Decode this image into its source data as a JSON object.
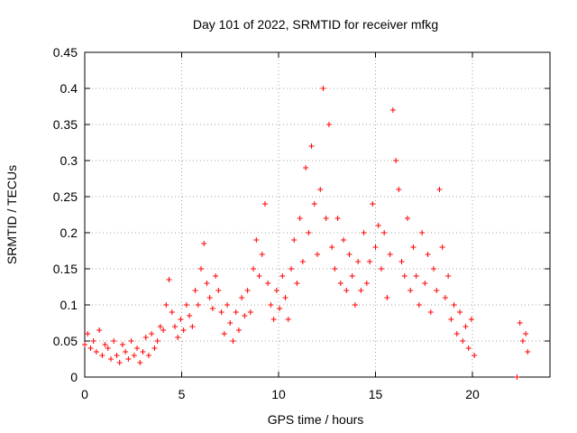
{
  "chart_data": {
    "type": "scatter",
    "title": "Day 101 of 2022, SRMTID for receiver mfkg",
    "xlabel": "GPS time / hours",
    "ylabel": "SRMTID / TECUs",
    "xlim": [
      0,
      24
    ],
    "ylim": [
      0,
      0.45
    ],
    "xticks": [
      "0",
      "5",
      "10",
      "15",
      "20"
    ],
    "yticks": [
      "0",
      "0.05",
      "0.1",
      "0.15",
      "0.2",
      "0.25",
      "0.3",
      "0.35",
      "0.4",
      "0.45"
    ],
    "grid": true,
    "marker": "+",
    "color": "#ff0000",
    "series": [
      {
        "name": "mfkg",
        "x": [
          0.0,
          0.15,
          0.3,
          0.45,
          0.6,
          0.75,
          0.9,
          1.05,
          1.2,
          1.35,
          1.5,
          1.65,
          1.8,
          1.95,
          2.1,
          2.25,
          2.4,
          2.55,
          2.7,
          2.85,
          3.0,
          3.15,
          3.3,
          3.45,
          3.6,
          3.75,
          3.9,
          4.05,
          4.2,
          4.35,
          4.5,
          4.65,
          4.8,
          4.95,
          5.1,
          5.25,
          5.4,
          5.55,
          5.7,
          5.85,
          6.0,
          6.15,
          6.3,
          6.45,
          6.6,
          6.75,
          6.9,
          7.05,
          7.2,
          7.35,
          7.5,
          7.65,
          7.8,
          7.95,
          8.1,
          8.25,
          8.4,
          8.55,
          8.7,
          8.85,
          9.0,
          9.15,
          9.3,
          9.45,
          9.6,
          9.75,
          9.9,
          10.05,
          10.2,
          10.35,
          10.5,
          10.65,
          10.8,
          10.95,
          11.1,
          11.25,
          11.4,
          11.55,
          11.7,
          11.85,
          12.0,
          12.15,
          12.3,
          12.45,
          12.6,
          12.75,
          12.9,
          13.05,
          13.2,
          13.35,
          13.5,
          13.65,
          13.8,
          13.95,
          14.1,
          14.25,
          14.4,
          14.55,
          14.7,
          14.85,
          15.0,
          15.15,
          15.3,
          15.45,
          15.6,
          15.75,
          15.9,
          16.05,
          16.2,
          16.35,
          16.5,
          16.65,
          16.8,
          16.95,
          17.1,
          17.25,
          17.4,
          17.55,
          17.7,
          17.85,
          18.0,
          18.15,
          18.3,
          18.45,
          18.6,
          18.75,
          18.9,
          19.05,
          19.2,
          19.35,
          19.5,
          19.65,
          19.8,
          19.95,
          20.1,
          22.3,
          22.45,
          22.6,
          22.75,
          22.85
        ],
        "y": [
          0.045,
          0.06,
          0.04,
          0.05,
          0.035,
          0.065,
          0.03,
          0.045,
          0.04,
          0.025,
          0.05,
          0.03,
          0.02,
          0.045,
          0.035,
          0.025,
          0.05,
          0.03,
          0.04,
          0.02,
          0.035,
          0.055,
          0.03,
          0.06,
          0.04,
          0.05,
          0.07,
          0.065,
          0.1,
          0.135,
          0.09,
          0.07,
          0.055,
          0.08,
          0.065,
          0.1,
          0.085,
          0.07,
          0.12,
          0.1,
          0.15,
          0.185,
          0.13,
          0.11,
          0.095,
          0.14,
          0.12,
          0.09,
          0.06,
          0.1,
          0.075,
          0.05,
          0.09,
          0.065,
          0.11,
          0.085,
          0.12,
          0.09,
          0.15,
          0.19,
          0.14,
          0.17,
          0.24,
          0.13,
          0.1,
          0.08,
          0.12,
          0.095,
          0.14,
          0.11,
          0.08,
          0.15,
          0.19,
          0.13,
          0.22,
          0.16,
          0.29,
          0.2,
          0.32,
          0.24,
          0.17,
          0.26,
          0.4,
          0.22,
          0.35,
          0.18,
          0.15,
          0.22,
          0.13,
          0.19,
          0.12,
          0.17,
          0.14,
          0.1,
          0.16,
          0.12,
          0.2,
          0.13,
          0.16,
          0.24,
          0.18,
          0.21,
          0.15,
          0.2,
          0.11,
          0.17,
          0.37,
          0.3,
          0.26,
          0.16,
          0.14,
          0.22,
          0.12,
          0.18,
          0.14,
          0.1,
          0.2,
          0.13,
          0.17,
          0.09,
          0.15,
          0.12,
          0.26,
          0.18,
          0.11,
          0.14,
          0.08,
          0.1,
          0.06,
          0.09,
          0.05,
          0.07,
          0.04,
          0.08,
          0.03,
          0.0,
          0.075,
          0.05,
          0.06,
          0.035
        ]
      }
    ]
  }
}
